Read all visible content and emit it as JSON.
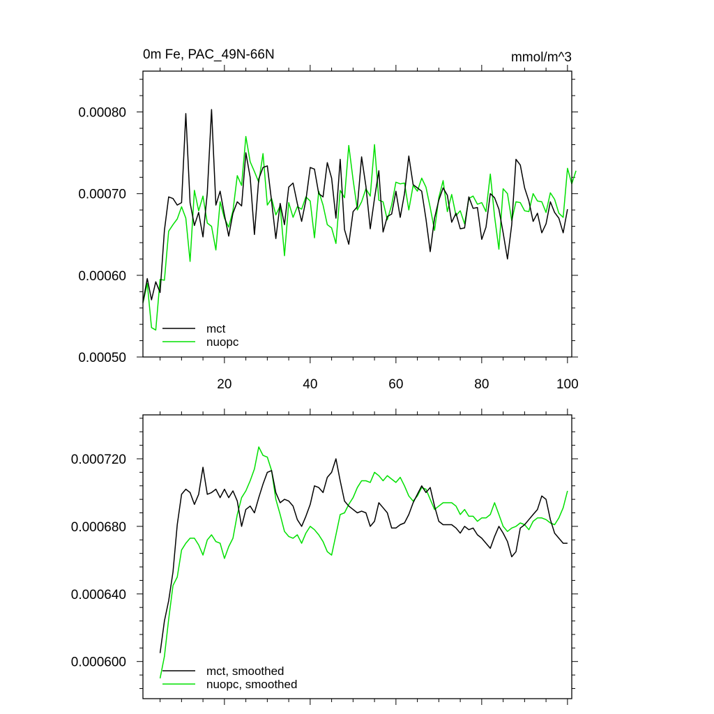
{
  "colors": {
    "mct": "#000000",
    "nuopc": "#00e000",
    "axis": "#000000",
    "background": "#ffffff"
  },
  "chart_data": [
    {
      "type": "line",
      "title": "0m Fe, PAC_49N-66N",
      "units": "mmol/m^3",
      "xlabel": "",
      "ylabel": "",
      "xlim": [
        1,
        101
      ],
      "ylim": [
        0.0005,
        0.00085
      ],
      "xticks": [
        20,
        40,
        60,
        80,
        100
      ],
      "xtick_labels": [
        "20",
        "40",
        "60",
        "80",
        "100"
      ],
      "yticks": [
        0.0005,
        0.0006,
        0.0007,
        0.0008
      ],
      "ytick_labels": [
        "0.00050",
        "0.00060",
        "0.00070",
        "0.00080"
      ],
      "legend_position": "bottom-left",
      "series": [
        {
          "name": "mct",
          "color": "#000000",
          "x_start": 1,
          "values": [
            0.000567,
            0.000596,
            0.00057,
            0.000592,
            0.000579,
            0.000655,
            0.000696,
            0.000694,
            0.000686,
            0.000689,
            0.000798,
            0.000689,
            0.000661,
            0.000677,
            0.000647,
            0.000701,
            0.000803,
            0.000686,
            0.000703,
            0.000674,
            0.000648,
            0.000676,
            0.00069,
            0.000685,
            0.00075,
            0.00072,
            0.00065,
            0.000718,
            0.000732,
            0.000734,
            0.000691,
            0.000645,
            0.000688,
            0.000662,
            0.000708,
            0.000713,
            0.000688,
            0.000666,
            0.000692,
            0.000732,
            0.00073,
            0.0007,
            0.000696,
            0.000738,
            0.000719,
            0.00067,
            0.000742,
            0.000656,
            0.000638,
            0.000678,
            0.000684,
            0.000745,
            0.000709,
            0.000657,
            0.000694,
            0.000728,
            0.000653,
            0.000672,
            0.000675,
            0.000703,
            0.000671,
            0.0007,
            0.000746,
            0.000711,
            0.000707,
            0.000703,
            0.000669,
            0.000629,
            0.00067,
            0.000692,
            0.000707,
            0.000698,
            0.000665,
            0.000676,
            0.000657,
            0.000658,
            0.000696,
            0.000682,
            0.000683,
            0.000644,
            0.000659,
            0.0007,
            0.000695,
            0.000681,
            0.000652,
            0.00062,
            0.000662,
            0.000742,
            0.000735,
            0.000707,
            0.000691,
            0.000666,
            0.000676,
            0.000652,
            0.000663,
            0.00069,
            0.000677,
            0.00067,
            0.000652,
            0.000681
          ]
        },
        {
          "name": "nuopc",
          "color": "#00e000",
          "x_start": 1,
          "values": [
            0.000566,
            0.00059,
            0.000536,
            0.000533,
            0.000595,
            0.000594,
            0.000654,
            0.000662,
            0.000669,
            0.000684,
            0.00067,
            0.000617,
            0.000704,
            0.000679,
            0.000697,
            0.000664,
            0.00066,
            0.000631,
            0.00069,
            0.00067,
            0.000659,
            0.000679,
            0.000722,
            0.00071,
            0.00077,
            0.000739,
            0.000727,
            0.000714,
            0.000749,
            0.000686,
            0.000694,
            0.000674,
            0.000685,
            0.000624,
            0.000689,
            0.000671,
            0.000684,
            0.000681,
            0.000696,
            0.000691,
            0.000646,
            0.000703,
            0.000686,
            0.000662,
            0.000658,
            0.000639,
            0.000704,
            0.000695,
            0.000759,
            0.000717,
            0.00068,
            0.00069,
            0.000706,
            0.000697,
            0.00076,
            0.000692,
            0.00069,
            0.000668,
            0.000686,
            0.000714,
            0.000712,
            0.000713,
            0.00068,
            0.00071,
            0.000703,
            0.000719,
            0.000708,
            0.000683,
            0.000655,
            0.000695,
            0.000716,
            0.000678,
            0.000699,
            0.000673,
            0.000679,
            0.000663,
            0.000694,
            0.000697,
            0.000687,
            0.000689,
            0.000678,
            0.000724,
            0.000672,
            0.000632,
            0.000706,
            0.0007,
            0.000667,
            0.00069,
            0.000689,
            0.000679,
            0.000678,
            0.0007,
            0.000691,
            0.00069,
            0.000677,
            0.000701,
            0.000693,
            0.000676,
            0.000671,
            0.000731,
            0.000712,
            0.000728
          ]
        }
      ]
    },
    {
      "type": "line",
      "title": "",
      "units": "",
      "xlabel": "",
      "ylabel": "",
      "xlim": [
        1,
        101
      ],
      "ylim": [
        0.000578,
        0.000746
      ],
      "xticks": [
        20,
        40,
        60,
        80,
        100
      ],
      "xtick_labels": [
        "",
        "",
        "",
        "",
        ""
      ],
      "yticks": [
        0.0006,
        0.00064,
        0.00068,
        0.00072
      ],
      "ytick_labels": [
        "0.000600",
        "0.000640",
        "0.000680",
        "0.000720"
      ],
      "legend_position": "bottom-left",
      "series": [
        {
          "name": "mct, smoothed",
          "color": "#000000",
          "x_start": 5,
          "values": [
            0.000605,
            0.000624,
            0.000636,
            0.000653,
            0.000681,
            0.000699,
            0.000702,
            0.0007,
            0.000693,
            0.000699,
            0.000715,
            0.000699,
            0.0007,
            0.000702,
            0.000697,
            0.000702,
            0.000697,
            0.000701,
            0.000695,
            0.00068,
            0.00069,
            0.000692,
            0.000688,
            0.000697,
            0.000705,
            0.000712,
            0.000713,
            0.0007,
            0.000694,
            0.000696,
            0.000695,
            0.000692,
            0.000684,
            0.00068,
            0.000686,
            0.000693,
            0.000704,
            0.000703,
            0.0007,
            0.000709,
            0.000712,
            0.00072,
            0.000707,
            0.000695,
            0.000692,
            0.00069,
            0.000688,
            0.000689,
            0.000688,
            0.00068,
            0.000683,
            0.000694,
            0.000691,
            0.000688,
            0.000679,
            0.000679,
            0.000681,
            0.000682,
            0.000687,
            0.000694,
            0.000699,
            0.000704,
            0.0007,
            0.000703,
            0.000692,
            0.000683,
            0.000681,
            0.000681,
            0.000681,
            0.000679,
            0.000676,
            0.00068,
            0.000678,
            0.000679,
            0.000675,
            0.000673,
            0.00067,
            0.000667,
            0.000674,
            0.00068,
            0.000676,
            0.000671,
            0.000662,
            0.000665,
            0.000679,
            0.000681,
            0.000684,
            0.000687,
            0.00069,
            0.000698,
            0.000696,
            0.000684,
            0.000676,
            0.000673,
            0.00067,
            0.00067
          ]
        },
        {
          "name": "nuopc, smoothed",
          "color": "#00e000",
          "x_start": 5,
          "values": [
            0.00059,
            0.000603,
            0.000625,
            0.000645,
            0.00065,
            0.000666,
            0.00067,
            0.000673,
            0.000673,
            0.000669,
            0.000663,
            0.000672,
            0.000675,
            0.000671,
            0.00067,
            0.000661,
            0.000668,
            0.000673,
            0.000687,
            0.000697,
            0.000701,
            0.000707,
            0.000714,
            0.000727,
            0.000722,
            0.000721,
            0.000713,
            0.000696,
            0.000687,
            0.000677,
            0.000674,
            0.000673,
            0.000675,
            0.00067,
            0.000676,
            0.00068,
            0.000678,
            0.000675,
            0.000671,
            0.000665,
            0.000663,
            0.000675,
            0.000687,
            0.000688,
            0.000693,
            0.000697,
            0.000703,
            0.000707,
            0.000707,
            0.000706,
            0.000712,
            0.00071,
            0.000707,
            0.00071,
            0.000708,
            0.000706,
            0.000709,
            0.000704,
            0.000698,
            0.000695,
            0.000698,
            0.000703,
            0.000702,
            0.000696,
            0.00069,
            0.000692,
            0.000694,
            0.000694,
            0.000694,
            0.000692,
            0.000687,
            0.00069,
            0.000686,
            0.000686,
            0.000683,
            0.000685,
            0.000685,
            0.000687,
            0.000694,
            0.000687,
            0.00068,
            0.000677,
            0.000679,
            0.00068,
            0.000682,
            0.000681,
            0.000678,
            0.000683,
            0.000685,
            0.000685,
            0.000684,
            0.000682,
            0.000681,
            0.000685,
            0.000691,
            0.000701
          ]
        }
      ]
    }
  ]
}
